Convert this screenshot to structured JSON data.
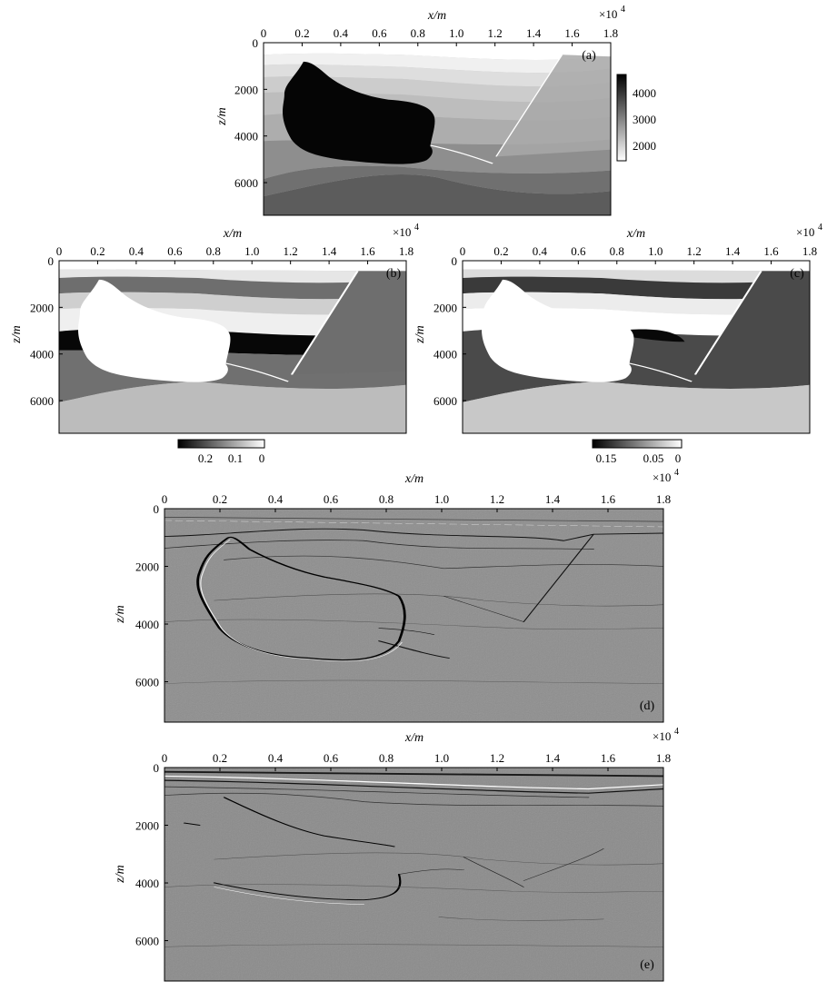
{
  "x_axis_label": "x/m",
  "z_axis_label": "z/m",
  "x_scale_note": "×10",
  "x_scale_exp": "4",
  "x_ticks": [
    "0",
    "0.2",
    "0.4",
    "0.6",
    "0.8",
    "1.0",
    "1.2",
    "1.4",
    "1.6",
    "1.8"
  ],
  "z_ticks": [
    "0",
    "2000",
    "4000",
    "6000"
  ],
  "panels": [
    {
      "label": "(a)",
      "content": "velocity model",
      "colorbar_ticks": [
        "4000",
        "3000",
        "2000"
      ]
    },
    {
      "label": "(b)",
      "content": "anisotropy parameter",
      "colorbar_ticks": [
        "0.2",
        "0.1",
        "0"
      ]
    },
    {
      "label": "(c)",
      "content": "anisotropy parameter",
      "colorbar_ticks": [
        "0.15",
        "0.05",
        "0"
      ]
    },
    {
      "label": "(d)",
      "content": "migrated image"
    },
    {
      "label": "(e)",
      "content": "migrated image"
    }
  ],
  "colors": {
    "salt_dark": "#050505",
    "background": "#ffffff",
    "image_gray": "#8c8c8c"
  }
}
